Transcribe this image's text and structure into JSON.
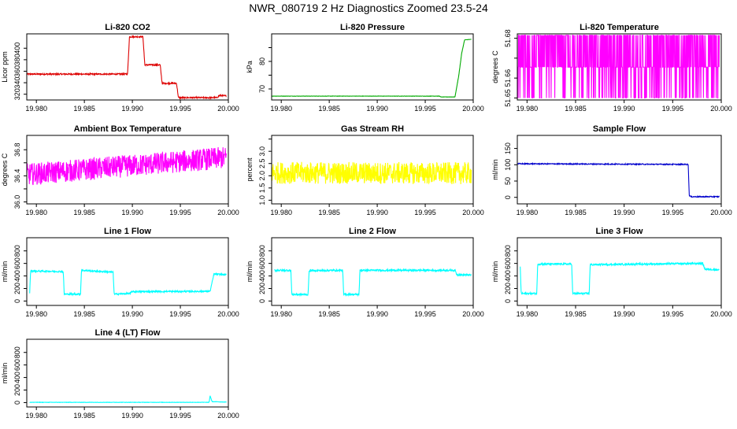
{
  "figure": {
    "title": "NWR_080719  2 Hz Diagnostics Zoomed 23.5-24"
  },
  "chart_data": [
    {
      "type": "line",
      "title": "Li-820 CO2",
      "xlabel": "",
      "ylabel": "Licor ppm",
      "color": "#dd0000",
      "xlim": [
        19.979,
        20.0
      ],
      "ylim": [
        310,
        425
      ],
      "xticks": [
        "19.980",
        "19.985",
        "19.990",
        "19.995",
        "20.000"
      ],
      "yticks": [
        "320",
        "340",
        "360",
        "380",
        "400"
      ],
      "xtick_values": [
        19.98,
        19.985,
        19.99,
        19.995,
        20.0
      ],
      "ytick_values": [
        320,
        340,
        360,
        380,
        400
      ],
      "noise": 1.2,
      "series": [
        {
          "points": [
            [
              19.979,
              355
            ],
            [
              19.9895,
              355
            ],
            [
              19.9897,
              420
            ],
            [
              19.9911,
              420
            ],
            [
              19.9913,
              371
            ],
            [
              19.9929,
              371
            ],
            [
              19.9931,
              339
            ],
            [
              19.9946,
              339
            ],
            [
              19.9948,
              314
            ],
            [
              19.9988,
              314
            ],
            [
              19.9991,
              318
            ],
            [
              19.9998,
              317
            ]
          ]
        }
      ]
    },
    {
      "type": "line",
      "title": "Li-820 Pressure",
      "xlabel": "",
      "ylabel": "kPa",
      "color": "#00aa00",
      "xlim": [
        19.979,
        20.0
      ],
      "ylim": [
        66,
        90
      ],
      "xticks": [
        "19.980",
        "19.985",
        "19.990",
        "19.995",
        "20.000"
      ],
      "yticks": [
        "70",
        "80"
      ],
      "xtick_values": [
        19.98,
        19.985,
        19.99,
        19.995,
        20.0
      ],
      "ytick_values": [
        70,
        75,
        80,
        85
      ],
      "noise": 0.05,
      "series": [
        {
          "points": [
            [
              19.979,
              67.4
            ],
            [
              19.9965,
              67.4
            ],
            [
              19.9966,
              67.1
            ],
            [
              19.9981,
              67.1
            ],
            [
              19.9985,
              75
            ],
            [
              19.9988,
              83
            ],
            [
              19.9991,
              87.8
            ],
            [
              19.9998,
              88
            ]
          ]
        }
      ]
    },
    {
      "type": "line",
      "title": "Li-820 Temperature",
      "xlabel": "",
      "ylabel": "degrees C",
      "color": "#ff00ff",
      "xlim": [
        19.979,
        20.0
      ],
      "ylim": [
        51.649,
        51.6822
      ],
      "xticks": [
        "19.980",
        "19.985",
        "19.990",
        "19.995",
        "20.000"
      ],
      "yticks": [
        "51.65",
        "51.66",
        "51.68"
      ],
      "xtick_values": [
        19.98,
        19.985,
        19.99,
        19.995,
        20.0
      ],
      "ytick_values": [
        51.65,
        51.66,
        51.67,
        51.68
      ],
      "mode": "toggle",
      "levels": [
        51.65,
        51.6655,
        51.6815
      ],
      "series": [
        {
          "points": [
            [
              19.979,
              51.6655
            ],
            [
              19.9998,
              51.6655
            ]
          ]
        }
      ]
    },
    {
      "type": "line",
      "title": "Ambient Box Temperature",
      "xlabel": "",
      "ylabel": "degrees C",
      "color": "#ff00ff",
      "xlim": [
        19.979,
        20.0
      ],
      "ylim": [
        35.97,
        37.02
      ],
      "xticks": [
        "19.980",
        "19.985",
        "19.990",
        "19.995",
        "20.000"
      ],
      "yticks": [
        "36.0",
        "36.4",
        "36.8"
      ],
      "xtick_values": [
        19.98,
        19.985,
        19.99,
        19.995,
        20.0
      ],
      "ytick_values": [
        36.0,
        36.2,
        36.4,
        36.6,
        36.8
      ],
      "noise": 0.17,
      "series": [
        {
          "points": [
            [
              19.979,
              36.42
            ],
            [
              19.9998,
              36.68
            ]
          ]
        }
      ]
    },
    {
      "type": "line",
      "title": "Gas Stream RH",
      "xlabel": "",
      "ylabel": "percent",
      "color": "#ffff00",
      "xlim": [
        19.979,
        20.0
      ],
      "ylim": [
        0.85,
        3.65
      ],
      "xticks": [
        "19.980",
        "19.985",
        "19.990",
        "19.995",
        "20.000"
      ],
      "yticks": [
        "1.0",
        "1.5",
        "2.0",
        "2.5",
        "3.0"
      ],
      "xtick_values": [
        19.98,
        19.985,
        19.99,
        19.995,
        20.0
      ],
      "ytick_values": [
        1.0,
        1.5,
        2.0,
        2.5,
        3.0,
        3.5
      ],
      "noise": 0.45,
      "series": [
        {
          "points": [
            [
              19.979,
              2.12
            ],
            [
              19.9998,
              2.1
            ]
          ]
        }
      ]
    },
    {
      "type": "line",
      "title": "Sample Flow",
      "xlabel": "",
      "ylabel": "ml/min",
      "color": "#0000cc",
      "xlim": [
        19.979,
        20.0
      ],
      "ylim": [
        -20,
        190
      ],
      "xticks": [
        "19.980",
        "19.985",
        "19.990",
        "19.995",
        "20.000"
      ],
      "yticks": [
        "0",
        "50",
        "100",
        "150"
      ],
      "xtick_values": [
        19.98,
        19.985,
        19.99,
        19.995,
        20.0
      ],
      "ytick_values": [
        0,
        50,
        100,
        150
      ],
      "noise": 1.5,
      "series": [
        {
          "points": [
            [
              19.979,
              103
            ],
            [
              19.9966,
              101
            ],
            [
              19.9967,
              6
            ],
            [
              19.9969,
              2
            ],
            [
              19.9998,
              2
            ]
          ]
        }
      ]
    },
    {
      "type": "line",
      "title": "Line 1 Flow",
      "xlabel": "",
      "ylabel": "ml/min",
      "color": "#00ffff",
      "xlim": [
        19.979,
        20.0
      ],
      "ylim": [
        -70,
        1010
      ],
      "xticks": [
        "19.980",
        "19.985",
        "19.990",
        "19.995",
        "20.000"
      ],
      "yticks": [
        "0",
        "200",
        "400",
        "600",
        "800"
      ],
      "xtick_values": [
        19.98,
        19.985,
        19.99,
        19.995,
        20.0
      ],
      "ytick_values": [
        0,
        200,
        400,
        600,
        800
      ],
      "noise": 12,
      "series": [
        {
          "points": [
            [
              19.9793,
              130
            ],
            [
              19.9794,
              480
            ],
            [
              19.9828,
              470
            ],
            [
              19.9829,
              110
            ],
            [
              19.9846,
              110
            ],
            [
              19.9847,
              490
            ],
            [
              19.988,
              460
            ],
            [
              19.9881,
              110
            ],
            [
              19.9898,
              120
            ],
            [
              19.9899,
              150
            ],
            [
              19.9981,
              155
            ],
            [
              19.9985,
              430
            ],
            [
              19.9998,
              420
            ]
          ]
        }
      ]
    },
    {
      "type": "line",
      "title": "Line 2 Flow",
      "xlabel": "",
      "ylabel": "ml/min",
      "color": "#00ffff",
      "xlim": [
        19.979,
        20.0
      ],
      "ylim": [
        -70,
        1010
      ],
      "xticks": [
        "19.980",
        "19.985",
        "19.990",
        "19.995",
        "20.000"
      ],
      "yticks": [
        "0",
        "200",
        "400",
        "600",
        "800"
      ],
      "xtick_values": [
        19.98,
        19.985,
        19.99,
        19.995,
        20.0
      ],
      "ytick_values": [
        0,
        200,
        400,
        600,
        800
      ],
      "noise": 14,
      "series": [
        {
          "points": [
            [
              19.9793,
              490
            ],
            [
              19.981,
              490
            ],
            [
              19.9811,
              105
            ],
            [
              19.9828,
              105
            ],
            [
              19.9829,
              485
            ],
            [
              19.9864,
              490
            ],
            [
              19.9865,
              105
            ],
            [
              19.9881,
              105
            ],
            [
              19.9882,
              490
            ],
            [
              19.9981,
              490
            ],
            [
              19.9983,
              420
            ],
            [
              19.9998,
              415
            ]
          ]
        }
      ]
    },
    {
      "type": "line",
      "title": "Line 3 Flow",
      "xlabel": "",
      "ylabel": "ml/min",
      "color": "#00ffff",
      "xlim": [
        19.979,
        20.0
      ],
      "ylim": [
        -70,
        1010
      ],
      "xticks": [
        "19.980",
        "19.985",
        "19.990",
        "19.995",
        "20.000"
      ],
      "yticks": [
        "0",
        "200",
        "400",
        "600",
        "800"
      ],
      "xtick_values": [
        19.98,
        19.985,
        19.99,
        19.995,
        20.0
      ],
      "ytick_values": [
        0,
        200,
        400,
        600,
        800
      ],
      "noise": 14,
      "series": [
        {
          "points": [
            [
              19.9793,
              540
            ],
            [
              19.9794,
              120
            ],
            [
              19.981,
              120
            ],
            [
              19.9811,
              590
            ],
            [
              19.9846,
              590
            ],
            [
              19.9847,
              120
            ],
            [
              19.9864,
              120
            ],
            [
              19.9865,
              580
            ],
            [
              19.9981,
              600
            ],
            [
              19.9983,
              510
            ],
            [
              19.9998,
              500
            ]
          ]
        }
      ]
    },
    {
      "type": "line",
      "title": "Line 4 (LT) Flow",
      "xlabel": "",
      "ylabel": "ml/min",
      "color": "#00ffff",
      "xlim": [
        19.979,
        20.0
      ],
      "ylim": [
        -70,
        1010
      ],
      "xticks": [
        "19.980",
        "19.985",
        "19.990",
        "19.995",
        "20.000"
      ],
      "yticks": [
        "0",
        "200",
        "400",
        "600",
        "800"
      ],
      "xtick_values": [
        19.98,
        19.985,
        19.99,
        19.995,
        20.0
      ],
      "ytick_values": [
        0,
        200,
        400,
        600,
        800
      ],
      "noise": 3,
      "series": [
        {
          "points": [
            [
              19.9793,
              4
            ],
            [
              19.998,
              4
            ],
            [
              19.9981,
              110
            ],
            [
              19.9983,
              15
            ],
            [
              19.9998,
              8
            ]
          ]
        }
      ]
    }
  ]
}
